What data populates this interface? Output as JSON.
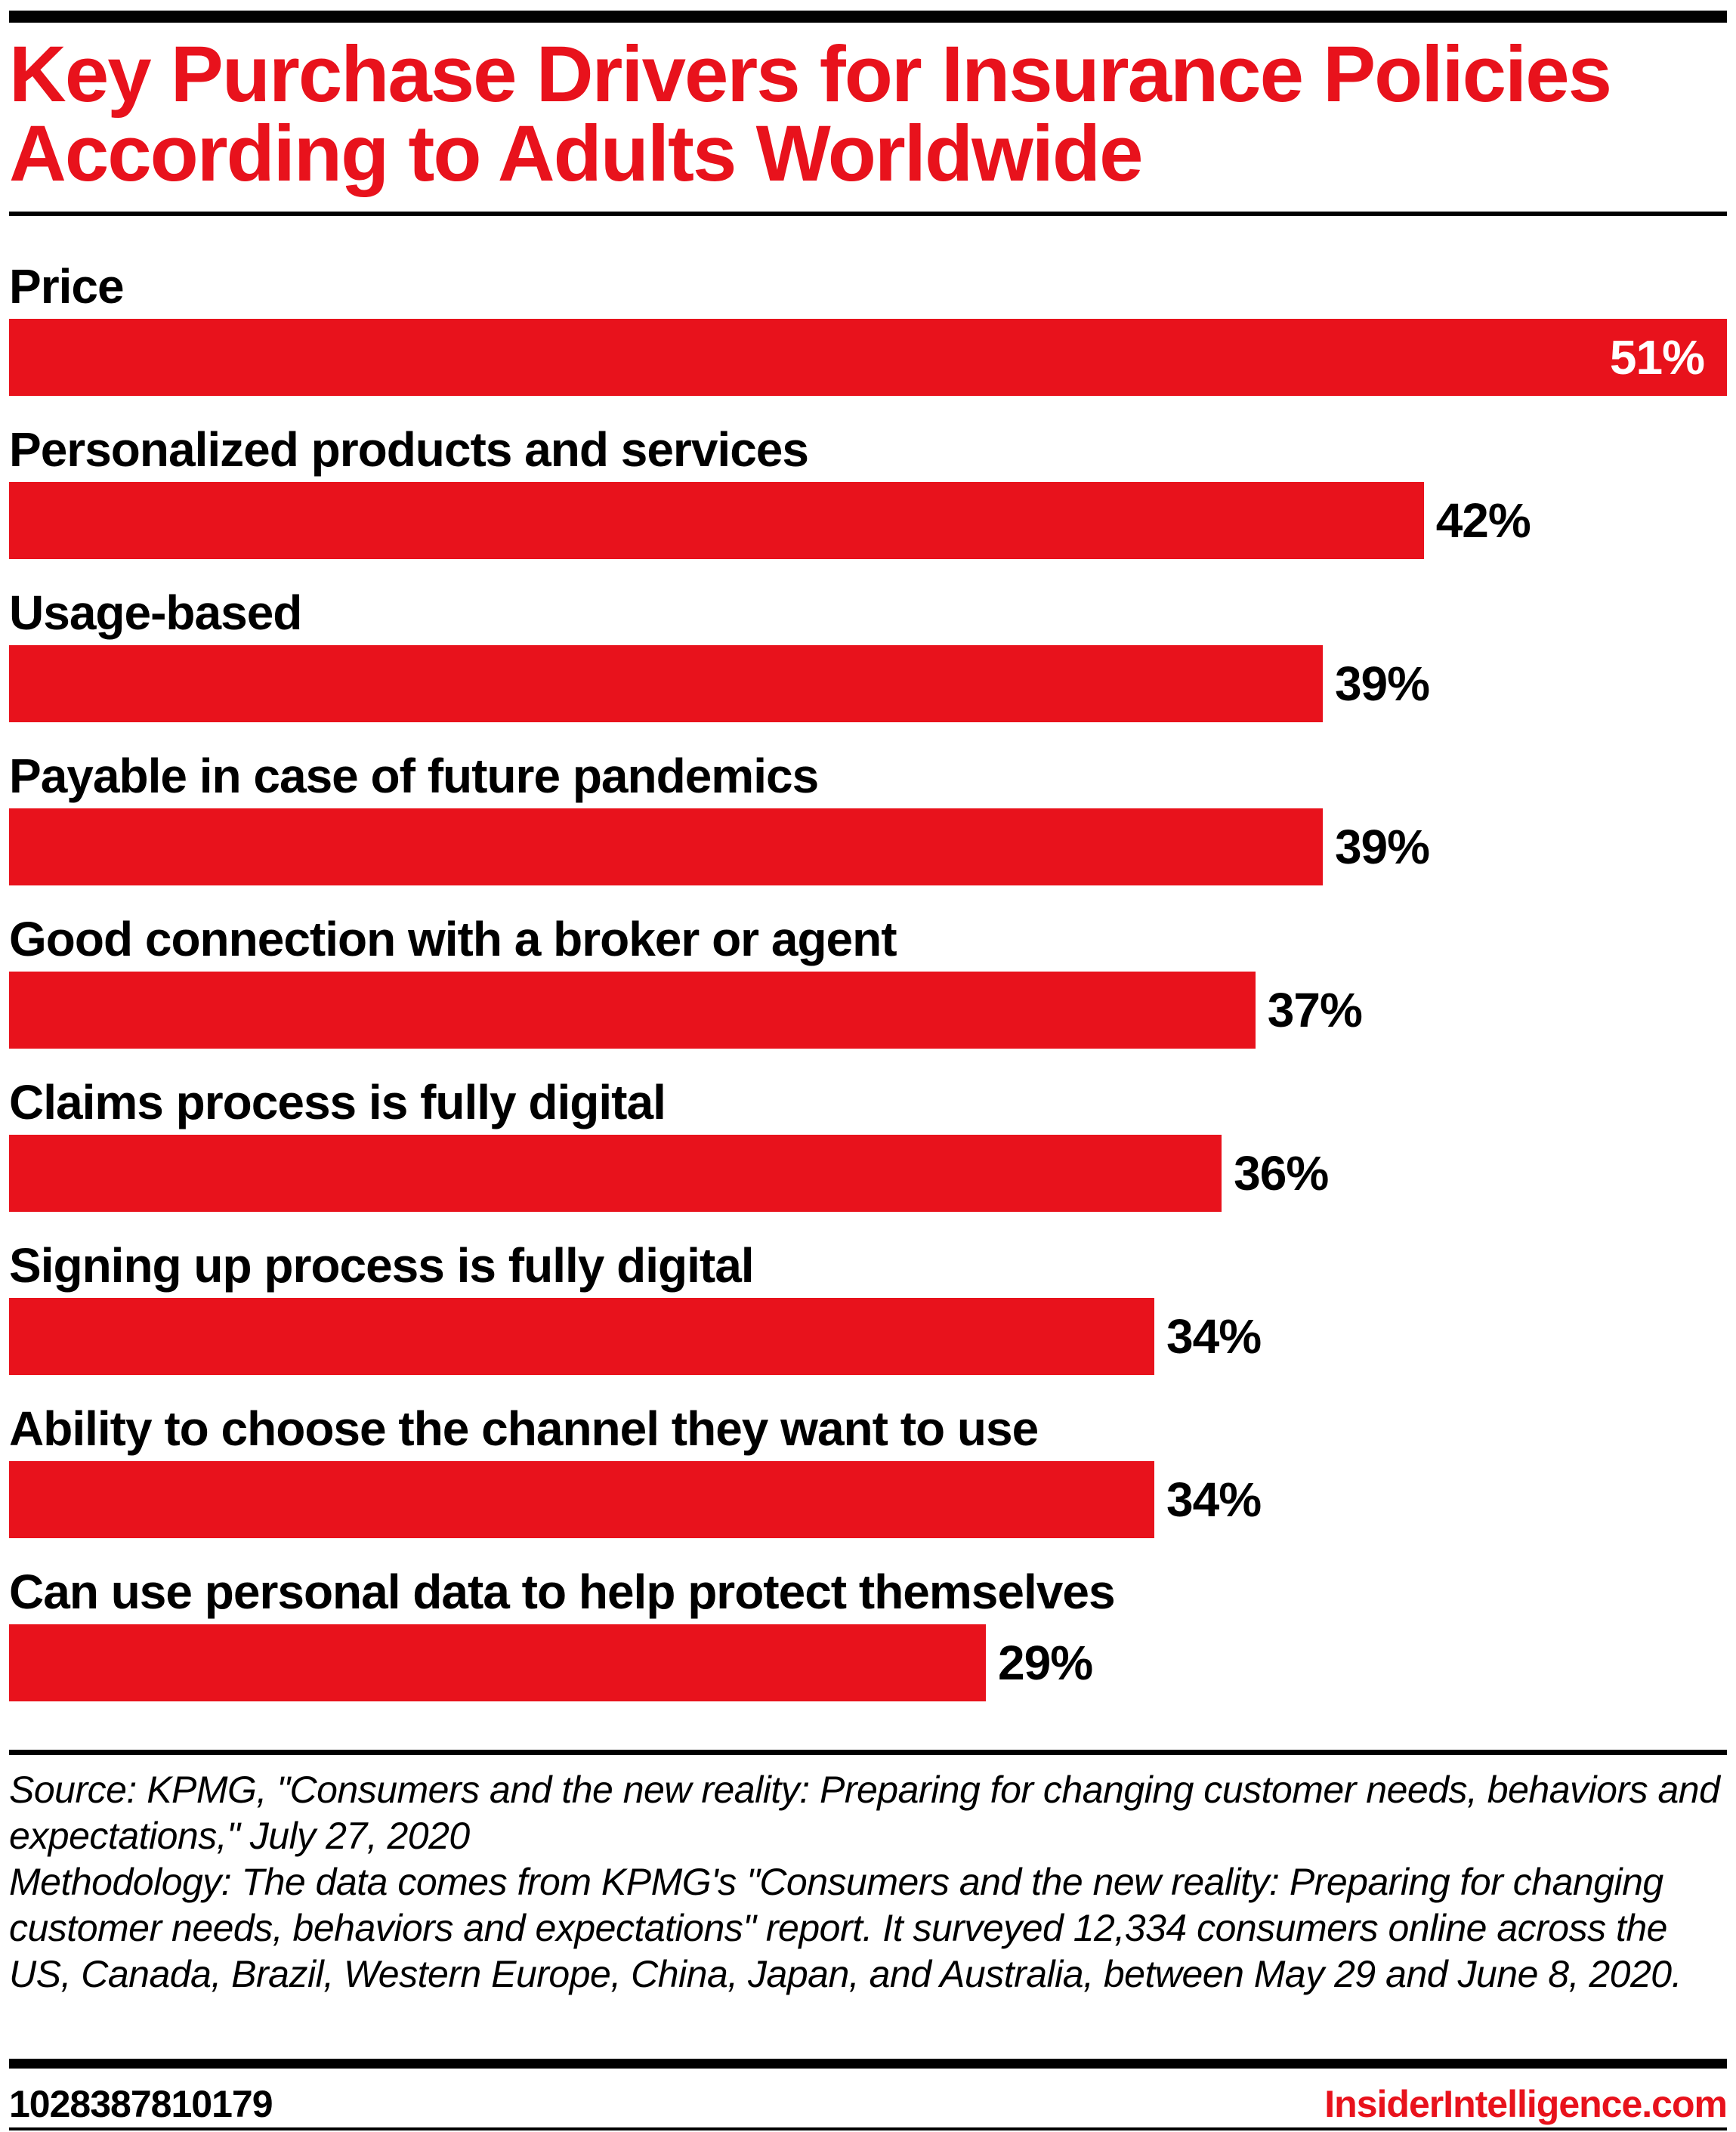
{
  "header": {
    "title": "Key Purchase Drivers for Insurance Policies According to Adults Worldwide"
  },
  "chart_data": {
    "type": "bar",
    "orientation": "horizontal",
    "title": "Key Purchase Drivers for Insurance Policies According to Adults Worldwide",
    "categories": [
      "Price",
      "Personalized products and services",
      "Usage-based",
      "Payable in case of future pandemics",
      "Good connection with a broker or agent",
      "Claims process is fully digital",
      "Signing up process is fully digital",
      "Ability to choose the channel they want to use",
      "Can use personal data to help protect themselves"
    ],
    "values": [
      51,
      42,
      39,
      39,
      37,
      36,
      34,
      34,
      29
    ],
    "value_labels": [
      "51%",
      "42%",
      "39%",
      "39%",
      "37%",
      "36%",
      "34%",
      "34%",
      "29%"
    ],
    "unit": "%",
    "xlim": [
      0,
      51
    ],
    "grid": false,
    "legend": false,
    "bar_color": "#e8121c",
    "max_value_label_style": "white-inside-bar",
    "other_value_label_style": "black-outside-bar"
  },
  "source": {
    "source_text": "Source: KPMG, \"Consumers and the new reality: Preparing for changing customer needs, behaviors and expectations,\" July 27, 2020",
    "methodology_text": "Methodology: The data comes from KPMG's \"Consumers and the new reality: Preparing for changing customer needs, behaviors and expectations\" report. It surveyed 12,334 consumers online across the US, Canada, Brazil, Western Europe, China, Japan, and Australia, between May 29 and June 8, 2020."
  },
  "footer": {
    "chart_id": "1028387810179",
    "brand": "InsiderIntelligence.com"
  },
  "colors": {
    "accent_red": "#e8121c",
    "text_black": "#000000",
    "background": "#ffffff",
    "inside_value_label": "#ffffff"
  }
}
